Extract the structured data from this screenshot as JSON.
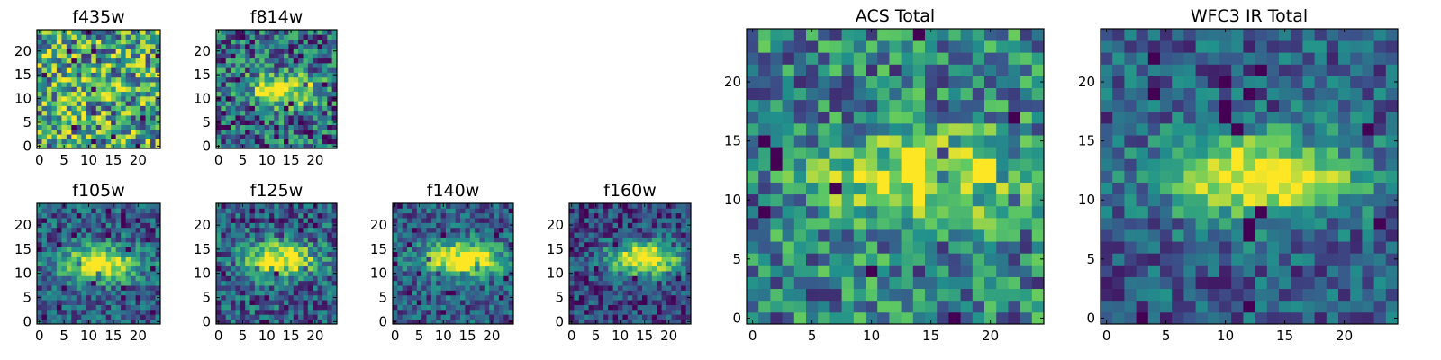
{
  "colors": {
    "colormap": "viridis",
    "stops": [
      "#440154",
      "#3b528b",
      "#21918c",
      "#5ec962",
      "#fde725"
    ]
  },
  "chart_data": [
    {
      "type": "heatmap",
      "title": "f435w",
      "grid_size": 25,
      "xticks": [
        "0",
        "5",
        "10",
        "15",
        "20"
      ],
      "yticks": [
        "0",
        "5",
        "10",
        "15",
        "20"
      ],
      "xlim": [
        -0.5,
        24.5
      ],
      "ylim": [
        -0.5,
        24.5
      ],
      "origin": "lower",
      "grid": false,
      "values": "uniform noise; high-valued field",
      "profile": {
        "noise_level": 0.55,
        "peak_x": 12,
        "peak_y": 12,
        "peak_strength": 0.05,
        "base": 0.6
      }
    },
    {
      "type": "heatmap",
      "title": "f814w",
      "grid_size": 25,
      "xticks": [
        "0",
        "5",
        "10",
        "15",
        "20"
      ],
      "yticks": [
        "0",
        "5",
        "10",
        "15",
        "20"
      ],
      "xlim": [
        -0.5,
        24.5
      ],
      "ylim": [
        -0.5,
        24.5
      ],
      "origin": "lower",
      "grid": false,
      "values": "noise with bright elongated source near (12,12)",
      "profile": {
        "noise_level": 0.45,
        "peak_x": 13,
        "peak_y": 12,
        "peak_strength": 0.7,
        "base": 0.35
      }
    },
    {
      "type": "heatmap",
      "title": "f105w",
      "grid_size": 25,
      "xticks": [
        "0",
        "5",
        "10",
        "15",
        "20"
      ],
      "yticks": [
        "0",
        "5",
        "10",
        "15",
        "20"
      ],
      "xlim": [
        -0.5,
        24.5
      ],
      "ylim": [
        -0.5,
        24.5
      ],
      "origin": "lower",
      "grid": false,
      "values": "bright elongated source near (12,12)",
      "profile": {
        "noise_level": 0.3,
        "peak_x": 12,
        "peak_y": 12,
        "peak_strength": 0.8,
        "base": 0.3
      }
    },
    {
      "type": "heatmap",
      "title": "f125w",
      "grid_size": 25,
      "xticks": [
        "0",
        "5",
        "10",
        "15",
        "20"
      ],
      "yticks": [
        "0",
        "5",
        "10",
        "15",
        "20"
      ],
      "xlim": [
        -0.5,
        24.5
      ],
      "ylim": [
        -0.5,
        24.5
      ],
      "origin": "lower",
      "grid": false,
      "values": "bright elongated source near (13,13)",
      "profile": {
        "noise_level": 0.35,
        "peak_x": 13,
        "peak_y": 13,
        "peak_strength": 0.75,
        "base": 0.3
      }
    },
    {
      "type": "heatmap",
      "title": "f140w",
      "grid_size": 25,
      "xticks": [
        "0",
        "5",
        "10",
        "15",
        "20"
      ],
      "yticks": [
        "0",
        "5",
        "10",
        "15",
        "20"
      ],
      "xlim": [
        -0.5,
        24.5
      ],
      "ylim": [
        -0.5,
        24.5
      ],
      "origin": "lower",
      "grid": false,
      "values": "bright elongated source near (14,13)",
      "profile": {
        "noise_level": 0.28,
        "peak_x": 14,
        "peak_y": 13,
        "peak_strength": 0.85,
        "base": 0.3
      }
    },
    {
      "type": "heatmap",
      "title": "f160w",
      "grid_size": 25,
      "xticks": [
        "0",
        "5",
        "10",
        "15",
        "20"
      ],
      "yticks": [
        "0",
        "5",
        "10",
        "15",
        "20"
      ],
      "xlim": [
        -0.5,
        24.5
      ],
      "ylim": [
        -0.5,
        24.5
      ],
      "origin": "lower",
      "grid": false,
      "values": "bright elongated source near (15,13)",
      "profile": {
        "noise_level": 0.28,
        "peak_x": 15,
        "peak_y": 13,
        "peak_strength": 0.85,
        "base": 0.22
      }
    },
    {
      "type": "heatmap",
      "title": "ACS Total",
      "grid_size": 25,
      "xticks": [
        "0",
        "5",
        "10",
        "15",
        "20"
      ],
      "yticks": [
        "0",
        "5",
        "10",
        "15",
        "20"
      ],
      "xlim": [
        -0.5,
        24.5
      ],
      "ylim": [
        -0.5,
        24.5
      ],
      "origin": "lower",
      "grid": false,
      "values": "noise with bright elongated source near (13,12)",
      "profile": {
        "noise_level": 0.4,
        "peak_x": 14,
        "peak_y": 12,
        "peak_strength": 0.55,
        "base": 0.45
      }
    },
    {
      "type": "heatmap",
      "title": "WFC3 IR Total",
      "grid_size": 25,
      "xticks": [
        "0",
        "5",
        "10",
        "15",
        "20"
      ],
      "yticks": [
        "0",
        "5",
        "10",
        "15",
        "20"
      ],
      "xlim": [
        -0.5,
        24.5
      ],
      "ylim": [
        -0.5,
        24.5
      ],
      "origin": "lower",
      "grid": false,
      "values": "bright elongated source near (13,12)",
      "profile": {
        "noise_level": 0.28,
        "peak_x": 13,
        "peak_y": 12,
        "peak_strength": 0.8,
        "base": 0.3
      }
    }
  ]
}
